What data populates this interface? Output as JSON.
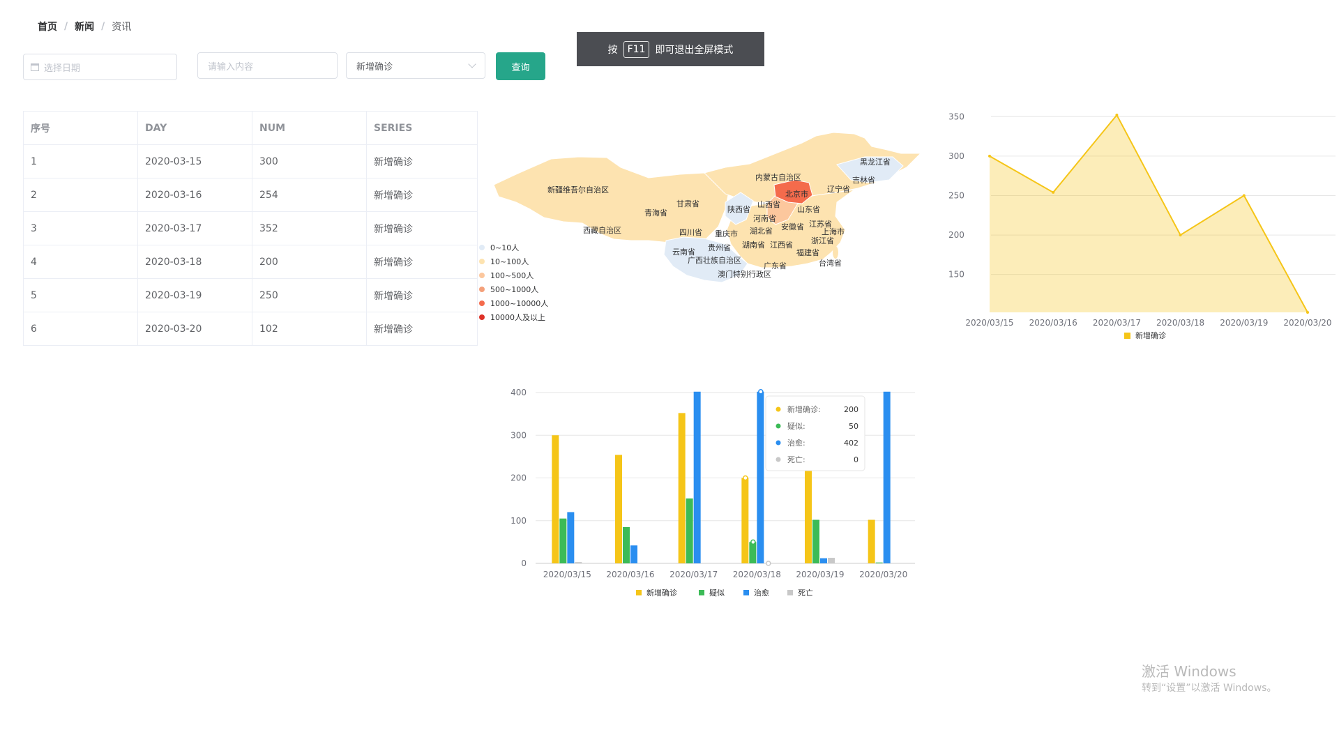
{
  "breadcrumb": [
    "首页",
    "新闻",
    "资讯"
  ],
  "filters": {
    "date_placeholder": "选择日期",
    "search_placeholder": "请输入内容",
    "select_value": "新增确诊",
    "query_label": "查询"
  },
  "toast": {
    "prefix": "按",
    "key": "F11",
    "suffix": "即可退出全屏模式"
  },
  "table": {
    "headers": [
      "序号",
      "DAY",
      "NUM",
      "SERIES"
    ],
    "rows": [
      [
        "1",
        "2020-03-15",
        "300",
        "新增确诊"
      ],
      [
        "2",
        "2020-03-16",
        "254",
        "新增确诊"
      ],
      [
        "3",
        "2020-03-17",
        "352",
        "新增确诊"
      ],
      [
        "4",
        "2020-03-18",
        "200",
        "新增确诊"
      ],
      [
        "5",
        "2020-03-19",
        "250",
        "新增确诊"
      ],
      [
        "6",
        "2020-03-20",
        "102",
        "新增确诊"
      ]
    ]
  },
  "map": {
    "legend": [
      "0~10人",
      "10~100人",
      "100~500人",
      "500~1000人",
      "1000~10000人",
      "10000人及以上"
    ],
    "legend_colors": [
      "#e1ebf6",
      "#fde3b0",
      "#fcc79d",
      "#f4a07a",
      "#f46b4c",
      "#de3127"
    ],
    "regions": [
      "新疆维吾尔自治区",
      "西藏自治区",
      "青海省",
      "甘肃省",
      "四川省",
      "云南省",
      "内蒙古自治区",
      "黑龙江省",
      "吉林省",
      "辽宁省",
      "北京市",
      "山西省",
      "陕西省",
      "河南省",
      "山东省",
      "安徽省",
      "江苏省",
      "上海市",
      "浙江省",
      "湖北省",
      "重庆市",
      "贵州省",
      "湖南省",
      "江西省",
      "福建省",
      "广西壮族自治区",
      "广东省",
      "台湾省",
      "澳门特别行政区"
    ]
  },
  "chart_data": [
    {
      "type": "area",
      "categories": [
        "2020/03/15",
        "2020/03/16",
        "2020/03/17",
        "2020/03/18",
        "2020/03/19",
        "2020/03/20"
      ],
      "series": [
        {
          "name": "新增确诊",
          "values": [
            300,
            254,
            352,
            200,
            250,
            102
          ]
        }
      ],
      "y_ticks": [
        150,
        200,
        250,
        300,
        350
      ],
      "color": "#f5c518",
      "legend_position": "bottom"
    },
    {
      "type": "bar",
      "categories": [
        "2020/03/15",
        "2020/03/16",
        "2020/03/17",
        "2020/03/18",
        "2020/03/19",
        "2020/03/20"
      ],
      "series": [
        {
          "name": "新增确诊",
          "values": [
            300,
            254,
            352,
            200,
            250,
            102
          ],
          "color": "#f5c518"
        },
        {
          "name": "疑似",
          "values": [
            105,
            85,
            152,
            50,
            102,
            2
          ],
          "color": "#3cbb57"
        },
        {
          "name": "治愈",
          "values": [
            120,
            42,
            402,
            402,
            12,
            402
          ],
          "color": "#2a8ef0"
        },
        {
          "name": "死亡",
          "values": [
            3,
            0,
            0,
            0,
            13,
            0
          ],
          "color": "#c8c8c8"
        }
      ],
      "ylim": [
        0,
        400
      ],
      "y_ticks": [
        0,
        100,
        200,
        300,
        400
      ],
      "legend_position": "bottom",
      "tooltip": {
        "category_index": 3,
        "rows": [
          {
            "name": "新增确诊:",
            "value": "200"
          },
          {
            "name": "疑似:",
            "value": "50"
          },
          {
            "name": "治愈:",
            "value": "402"
          },
          {
            "name": "死亡:",
            "value": "0"
          }
        ]
      }
    }
  ],
  "watermark": {
    "line1": "激活 Windows",
    "line2": "转到“设置”以激活 Windows。"
  }
}
